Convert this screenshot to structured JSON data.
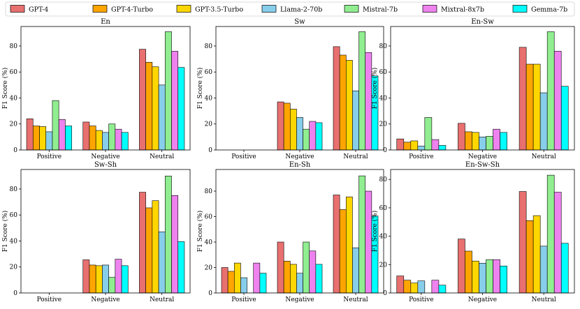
{
  "legend": [
    "GPT-4",
    "GPT-4-Turbo",
    "GPT-3.5-Turbo",
    "Llama-2-70b",
    "Mistral-7b",
    "Mixtral-8x7b",
    "Gemma-7b"
  ],
  "colors": [
    "#E8706F",
    "#FFA500",
    "#FFD700",
    "#87CEEB",
    "#90EE90",
    "#EE82EE",
    "#00FFFF"
  ],
  "chart_data": [
    {
      "type": "bar",
      "title": "En",
      "ylabel": "F1 Score (%)",
      "categories": [
        "Positive",
        "Negative",
        "Neutral"
      ],
      "ylim": [
        0,
        95
      ],
      "yticks": [
        0,
        20,
        40,
        60,
        80
      ],
      "series": [
        {
          "name": "GPT-4",
          "values": [
            24,
            21.5,
            77.5
          ]
        },
        {
          "name": "GPT-4-Turbo",
          "values": [
            18.5,
            18.5,
            67.5
          ]
        },
        {
          "name": "GPT-3.5-Turbo",
          "values": [
            18,
            15,
            64
          ]
        },
        {
          "name": "Llama-2-70b",
          "values": [
            14,
            13.5,
            50
          ]
        },
        {
          "name": "Mistral-7b",
          "values": [
            38,
            20,
            91
          ]
        },
        {
          "name": "Mixtral-8x7b",
          "values": [
            23.5,
            16,
            76
          ]
        },
        {
          "name": "Gemma-7b",
          "values": [
            18.5,
            13.5,
            63.5
          ]
        }
      ]
    },
    {
      "type": "bar",
      "title": "Sw",
      "ylabel": "F1 Score (%)",
      "categories": [
        "Positive",
        "Negative",
        "Neutral"
      ],
      "ylim": [
        0,
        95
      ],
      "yticks": [
        0,
        20,
        40,
        60,
        80
      ],
      "series": [
        {
          "name": "GPT-4",
          "values": [
            0,
            37,
            79.5
          ]
        },
        {
          "name": "GPT-4-Turbo",
          "values": [
            0,
            36,
            73
          ]
        },
        {
          "name": "GPT-3.5-Turbo",
          "values": [
            0,
            31.5,
            69
          ]
        },
        {
          "name": "Llama-2-70b",
          "values": [
            0,
            25,
            45.5
          ]
        },
        {
          "name": "Mistral-7b",
          "values": [
            0,
            16,
            91
          ]
        },
        {
          "name": "Mixtral-8x7b",
          "values": [
            0,
            22,
            75
          ]
        },
        {
          "name": "Gemma-7b",
          "values": [
            0,
            21,
            57
          ]
        }
      ]
    },
    {
      "type": "bar",
      "title": "En-Sw",
      "ylabel": "F1 Score (%)",
      "categories": [
        "Positive",
        "Negative",
        "Neutral"
      ],
      "ylim": [
        0,
        95
      ],
      "yticks": [
        0,
        20,
        40,
        60,
        80
      ],
      "series": [
        {
          "name": "GPT-4",
          "values": [
            8.5,
            20.5,
            79
          ]
        },
        {
          "name": "GPT-4-Turbo",
          "values": [
            6,
            14,
            66
          ]
        },
        {
          "name": "GPT-3.5-Turbo",
          "values": [
            7,
            13.5,
            66
          ]
        },
        {
          "name": "Llama-2-70b",
          "values": [
            3,
            10,
            44
          ]
        },
        {
          "name": "Mistral-7b",
          "values": [
            25,
            10.5,
            91
          ]
        },
        {
          "name": "Mixtral-8x7b",
          "values": [
            8,
            16,
            76
          ]
        },
        {
          "name": "Gemma-7b",
          "values": [
            3.5,
            13.5,
            49
          ]
        }
      ]
    },
    {
      "type": "bar",
      "title": "Sw-Sh",
      "ylabel": "F1 Score (%)",
      "categories": [
        "Positive",
        "Negative",
        "Neutral"
      ],
      "ylim": [
        0,
        95
      ],
      "yticks": [
        0,
        20,
        40,
        60,
        80
      ],
      "series": [
        {
          "name": "GPT-4",
          "values": [
            0,
            25.5,
            77.5
          ]
        },
        {
          "name": "GPT-4-Turbo",
          "values": [
            0,
            21.5,
            65.5
          ]
        },
        {
          "name": "GPT-3.5-Turbo",
          "values": [
            0,
            21,
            71
          ]
        },
        {
          "name": "Llama-2-70b",
          "values": [
            0,
            21.5,
            47
          ]
        },
        {
          "name": "Mistral-7b",
          "values": [
            0,
            12,
            90
          ]
        },
        {
          "name": "Mixtral-8x7b",
          "values": [
            0,
            26,
            75
          ]
        },
        {
          "name": "Gemma-7b",
          "values": [
            0,
            21,
            39.5
          ]
        }
      ]
    },
    {
      "type": "bar",
      "title": "En-Sh",
      "ylabel": "F1 Score (%)",
      "categories": [
        "Positive",
        "Negative",
        "Neutral"
      ],
      "ylim": [
        0,
        97
      ],
      "yticks": [
        0,
        20,
        40,
        60,
        80
      ],
      "series": [
        {
          "name": "GPT-4",
          "values": [
            20,
            40,
            77
          ]
        },
        {
          "name": "GPT-4-Turbo",
          "values": [
            17,
            25,
            65.5
          ]
        },
        {
          "name": "GPT-3.5-Turbo",
          "values": [
            23.5,
            22.5,
            75.5
          ]
        },
        {
          "name": "Llama-2-70b",
          "values": [
            12,
            15.5,
            35.5
          ]
        },
        {
          "name": "Mistral-7b",
          "values": [
            0,
            40,
            92
          ]
        },
        {
          "name": "Mixtral-8x7b",
          "values": [
            23.5,
            33,
            80
          ]
        },
        {
          "name": "Gemma-7b",
          "values": [
            15.5,
            22.5,
            60.5
          ]
        }
      ]
    },
    {
      "type": "bar",
      "title": "En-Sw-Sh",
      "ylabel": "F1 Score (%)",
      "categories": [
        "Positive",
        "Negative",
        "Neutral"
      ],
      "ylim": [
        0,
        87
      ],
      "yticks": [
        0,
        20,
        40,
        60,
        80
      ],
      "series": [
        {
          "name": "GPT-4",
          "values": [
            12,
            38,
            71.5
          ]
        },
        {
          "name": "GPT-4-Turbo",
          "values": [
            9,
            29.5,
            51
          ]
        },
        {
          "name": "GPT-3.5-Turbo",
          "values": [
            7,
            22.5,
            54.5
          ]
        },
        {
          "name": "Llama-2-70b",
          "values": [
            8.5,
            21,
            33
          ]
        },
        {
          "name": "Mistral-7b",
          "values": [
            0,
            23.5,
            83
          ]
        },
        {
          "name": "Mixtral-8x7b",
          "values": [
            9,
            23.5,
            71
          ]
        },
        {
          "name": "Gemma-7b",
          "values": [
            5.5,
            19,
            35
          ]
        }
      ]
    }
  ]
}
